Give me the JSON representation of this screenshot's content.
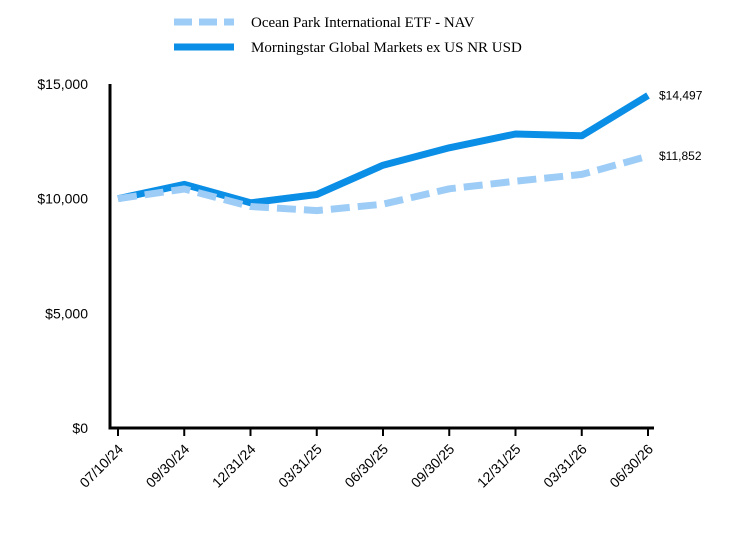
{
  "chart_data": {
    "type": "line",
    "categories": [
      "07/10/24",
      "09/30/24",
      "12/31/24",
      "03/31/25",
      "06/30/25",
      "09/30/25",
      "12/31/25",
      "03/31/26",
      "06/30/26"
    ],
    "series": [
      {
        "name": "Ocean Park International ETF - NAV",
        "color": "#9dcdf7",
        "dash": true,
        "values": [
          10000,
          10420,
          9660,
          9480,
          9760,
          10430,
          10760,
          11060,
          11852
        ],
        "end_label": "$11,852"
      },
      {
        "name": "Morningstar Global Markets ex US NR USD",
        "color": "#0a8ee6",
        "dash": false,
        "values": [
          10000,
          10620,
          9820,
          10180,
          11460,
          12220,
          12820,
          12740,
          14497
        ],
        "end_label": "$14,497"
      }
    ],
    "ylim": [
      0,
      15000
    ],
    "y_ticks": [
      {
        "value": 0,
        "label": "$0"
      },
      {
        "value": 5000,
        "label": "$5,000"
      },
      {
        "value": 10000,
        "label": "$10,000"
      },
      {
        "value": 15000,
        "label": "$15,000"
      }
    ],
    "grid": false,
    "legend": "top-center"
  }
}
